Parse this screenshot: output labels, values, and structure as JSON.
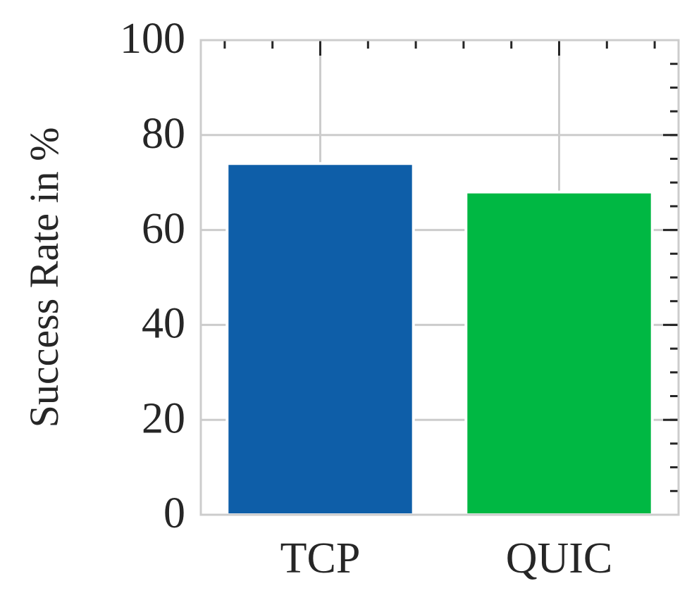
{
  "chart_data": {
    "type": "bar",
    "y_label": "Success Rate in %",
    "categories": [
      "TCP",
      "QUIC"
    ],
    "values": [
      74,
      68
    ],
    "colors": [
      "#0e5ea8",
      "#00b843"
    ],
    "ylim": [
      0,
      100
    ],
    "yticks": [
      0,
      20,
      40,
      60,
      80,
      100
    ],
    "grid": true
  }
}
